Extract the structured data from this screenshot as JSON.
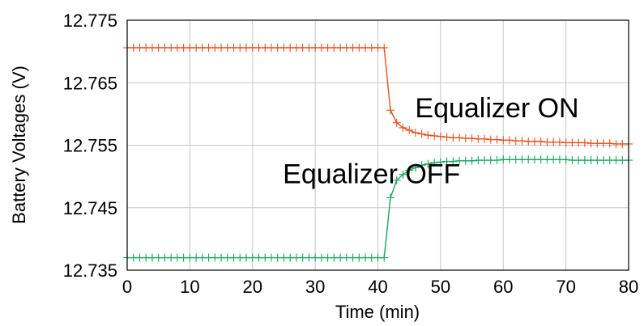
{
  "chart_data": {
    "type": "line",
    "title": "",
    "xlabel": "Time (min)",
    "ylabel": "Battery Voltages (V)",
    "xlim": [
      0,
      80
    ],
    "ylim": [
      12.735,
      12.775
    ],
    "xticks": [
      0,
      10,
      20,
      30,
      40,
      50,
      60,
      70,
      80
    ],
    "yticks": [
      12.735,
      12.745,
      12.755,
      12.765,
      12.775
    ],
    "xtick_labels": [
      "0",
      "10",
      "20",
      "30",
      "40",
      "50",
      "60",
      "70",
      "80"
    ],
    "ytick_labels": [
      "12.735",
      "12.745",
      "12.755",
      "12.765",
      "12.775"
    ],
    "grid": true,
    "marker": "plus",
    "annotations": [
      {
        "text": "Equalizer ON",
        "x": 59,
        "y": 12.761
      },
      {
        "text": "Equalizer OFF",
        "x": 39,
        "y": 12.7505
      }
    ],
    "series": [
      {
        "color": "#e8501e",
        "x": [
          0,
          1,
          2,
          3,
          4,
          5,
          6,
          7,
          8,
          9,
          10,
          11,
          12,
          13,
          14,
          15,
          16,
          17,
          18,
          19,
          20,
          21,
          22,
          23,
          24,
          25,
          26,
          27,
          28,
          29,
          30,
          31,
          32,
          33,
          34,
          35,
          36,
          37,
          38,
          39,
          40,
          41,
          42,
          43,
          44,
          45,
          46,
          47,
          48,
          49,
          50,
          51,
          52,
          53,
          54,
          55,
          56,
          57,
          58,
          59,
          60,
          61,
          62,
          63,
          64,
          65,
          66,
          67,
          68,
          69,
          70,
          71,
          72,
          73,
          74,
          75,
          76,
          77,
          78,
          79,
          80
        ],
        "y": [
          12.7706,
          12.7706,
          12.7706,
          12.7706,
          12.7706,
          12.7706,
          12.7706,
          12.7706,
          12.7706,
          12.7706,
          12.7706,
          12.7706,
          12.7706,
          12.7706,
          12.7706,
          12.7706,
          12.7706,
          12.7706,
          12.7706,
          12.7706,
          12.7706,
          12.7706,
          12.7706,
          12.7706,
          12.7706,
          12.7706,
          12.7706,
          12.7706,
          12.7706,
          12.7706,
          12.7706,
          12.7706,
          12.7706,
          12.7706,
          12.7706,
          12.7706,
          12.7706,
          12.7706,
          12.7706,
          12.7706,
          12.7706,
          12.7706,
          12.7606,
          12.7586,
          12.7578,
          12.7574,
          12.757,
          12.7568,
          12.7566,
          12.7565,
          12.7564,
          12.7563,
          12.7562,
          12.7562,
          12.7561,
          12.7561,
          12.756,
          12.756,
          12.7559,
          12.7559,
          12.7558,
          12.7558,
          12.7557,
          12.7557,
          12.7556,
          12.7556,
          12.7556,
          12.7555,
          12.7555,
          12.7555,
          12.7554,
          12.7554,
          12.7554,
          12.7554,
          12.7553,
          12.7553,
          12.7553,
          12.7553,
          12.7552,
          12.7552,
          12.7552
        ]
      },
      {
        "color": "#17a65c",
        "x": [
          0,
          1,
          2,
          3,
          4,
          5,
          6,
          7,
          8,
          9,
          10,
          11,
          12,
          13,
          14,
          15,
          16,
          17,
          18,
          19,
          20,
          21,
          22,
          23,
          24,
          25,
          26,
          27,
          28,
          29,
          30,
          31,
          32,
          33,
          34,
          35,
          36,
          37,
          38,
          39,
          40,
          41,
          42,
          43,
          44,
          45,
          46,
          47,
          48,
          49,
          50,
          51,
          52,
          53,
          54,
          55,
          56,
          57,
          58,
          59,
          60,
          61,
          62,
          63,
          64,
          65,
          66,
          67,
          68,
          69,
          70,
          71,
          72,
          73,
          74,
          75,
          76,
          77,
          78,
          79,
          80
        ],
        "y": [
          12.737,
          12.737,
          12.737,
          12.737,
          12.737,
          12.737,
          12.737,
          12.737,
          12.737,
          12.737,
          12.737,
          12.737,
          12.737,
          12.737,
          12.737,
          12.737,
          12.737,
          12.737,
          12.737,
          12.737,
          12.737,
          12.737,
          12.737,
          12.737,
          12.737,
          12.737,
          12.737,
          12.737,
          12.737,
          12.737,
          12.737,
          12.737,
          12.737,
          12.737,
          12.737,
          12.737,
          12.737,
          12.737,
          12.737,
          12.737,
          12.737,
          12.737,
          12.7466,
          12.7494,
          12.7503,
          12.751,
          12.7514,
          12.7518,
          12.752,
          12.7522,
          12.7523,
          12.7524,
          12.7524,
          12.7525,
          12.7525,
          12.7525,
          12.7526,
          12.7526,
          12.7526,
          12.7526,
          12.7527,
          12.7527,
          12.7527,
          12.7527,
          12.7527,
          12.7527,
          12.7527,
          12.7527,
          12.7527,
          12.7527,
          12.7527,
          12.7526,
          12.7526,
          12.7526,
          12.7526,
          12.7526,
          12.7526,
          12.7526,
          12.7526,
          12.7526,
          12.7526
        ]
      }
    ]
  }
}
